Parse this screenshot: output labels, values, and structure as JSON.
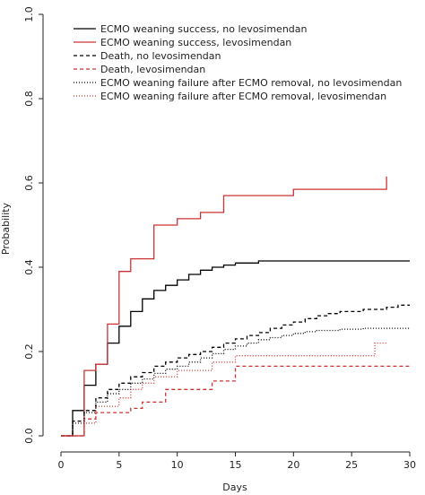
{
  "chart_data": {
    "type": "line",
    "subtype": "step",
    "xlabel": "Days",
    "ylabel": "Probability",
    "xlim": [
      0,
      30
    ],
    "ylim": [
      0,
      1.0
    ],
    "x_ticks": [
      0,
      5,
      10,
      15,
      20,
      25,
      30
    ],
    "y_ticks": [
      "0.0",
      "0.2",
      "0.4",
      "0.6",
      "0.8",
      "1.0"
    ],
    "grid": false,
    "legend_position": "top-left",
    "series": [
      {
        "name": "ECMO weaning success, no levosimendan",
        "color": "#000000",
        "dash": "solid",
        "points": [
          [
            0,
            0
          ],
          [
            1,
            0
          ],
          [
            1,
            0.06
          ],
          [
            2,
            0.06
          ],
          [
            2,
            0.12
          ],
          [
            3,
            0.12
          ],
          [
            3,
            0.17
          ],
          [
            4,
            0.17
          ],
          [
            4,
            0.22
          ],
          [
            5,
            0.22
          ],
          [
            5,
            0.26
          ],
          [
            6,
            0.26
          ],
          [
            6,
            0.295
          ],
          [
            7,
            0.295
          ],
          [
            7,
            0.325
          ],
          [
            8,
            0.325
          ],
          [
            8,
            0.345
          ],
          [
            9,
            0.345
          ],
          [
            9,
            0.357
          ],
          [
            10,
            0.357
          ],
          [
            10,
            0.37
          ],
          [
            11,
            0.37
          ],
          [
            11,
            0.383
          ],
          [
            12,
            0.383
          ],
          [
            12,
            0.393
          ],
          [
            13,
            0.393
          ],
          [
            13,
            0.4
          ],
          [
            14,
            0.4
          ],
          [
            14,
            0.405
          ],
          [
            15,
            0.405
          ],
          [
            15,
            0.41
          ],
          [
            17,
            0.41
          ],
          [
            17,
            0.415
          ],
          [
            30,
            0.415
          ]
        ]
      },
      {
        "name": "ECMO weaning success, levosimendan",
        "color": "#cc3333",
        "dash": "solid",
        "points": [
          [
            0,
            0
          ],
          [
            2,
            0
          ],
          [
            2,
            0.155
          ],
          [
            3,
            0.155
          ],
          [
            3,
            0.17
          ],
          [
            4,
            0.17
          ],
          [
            4,
            0.265
          ],
          [
            5,
            0.265
          ],
          [
            5,
            0.39
          ],
          [
            6,
            0.39
          ],
          [
            6,
            0.42
          ],
          [
            8,
            0.42
          ],
          [
            8,
            0.5
          ],
          [
            10,
            0.5
          ],
          [
            10,
            0.515
          ],
          [
            12,
            0.515
          ],
          [
            12,
            0.53
          ],
          [
            14,
            0.53
          ],
          [
            14,
            0.57
          ],
          [
            20,
            0.57
          ],
          [
            20,
            0.585
          ],
          [
            28,
            0.585
          ],
          [
            28,
            0.615
          ]
        ]
      },
      {
        "name": "Death, no levosimendan",
        "color": "#000000",
        "dash": "4,3",
        "points": [
          [
            0,
            0
          ],
          [
            1,
            0
          ],
          [
            1,
            0.035
          ],
          [
            2,
            0.035
          ],
          [
            2,
            0.06
          ],
          [
            3,
            0.06
          ],
          [
            3,
            0.09
          ],
          [
            4,
            0.09
          ],
          [
            4,
            0.11
          ],
          [
            5,
            0.11
          ],
          [
            5,
            0.125
          ],
          [
            6,
            0.125
          ],
          [
            6,
            0.14
          ],
          [
            7,
            0.14
          ],
          [
            7,
            0.15
          ],
          [
            8,
            0.15
          ],
          [
            8,
            0.165
          ],
          [
            9,
            0.165
          ],
          [
            9,
            0.175
          ],
          [
            10,
            0.175
          ],
          [
            10,
            0.185
          ],
          [
            11,
            0.185
          ],
          [
            11,
            0.193
          ],
          [
            12,
            0.193
          ],
          [
            12,
            0.2
          ],
          [
            13,
            0.2
          ],
          [
            13,
            0.21
          ],
          [
            14,
            0.21
          ],
          [
            14,
            0.22
          ],
          [
            15,
            0.22
          ],
          [
            15,
            0.23
          ],
          [
            16,
            0.23
          ],
          [
            16,
            0.238
          ],
          [
            17,
            0.238
          ],
          [
            17,
            0.245
          ],
          [
            18,
            0.245
          ],
          [
            18,
            0.255
          ],
          [
            19,
            0.255
          ],
          [
            19,
            0.263
          ],
          [
            20,
            0.263
          ],
          [
            20,
            0.27
          ],
          [
            21,
            0.27
          ],
          [
            21,
            0.278
          ],
          [
            22,
            0.278
          ],
          [
            22,
            0.285
          ],
          [
            23,
            0.285
          ],
          [
            23,
            0.29
          ],
          [
            24,
            0.29
          ],
          [
            24,
            0.295
          ],
          [
            26,
            0.295
          ],
          [
            26,
            0.3
          ],
          [
            28,
            0.3
          ],
          [
            28,
            0.305
          ],
          [
            29,
            0.305
          ],
          [
            29,
            0.31
          ],
          [
            30,
            0.31
          ]
        ]
      },
      {
        "name": "Death, levosimendan",
        "color": "#cc3333",
        "dash": "4,3",
        "points": [
          [
            0,
            0
          ],
          [
            2,
            0
          ],
          [
            2,
            0.04
          ],
          [
            3,
            0.04
          ],
          [
            3,
            0.055
          ],
          [
            6,
            0.055
          ],
          [
            6,
            0.065
          ],
          [
            7,
            0.065
          ],
          [
            7,
            0.08
          ],
          [
            9,
            0.08
          ],
          [
            9,
            0.11
          ],
          [
            13,
            0.11
          ],
          [
            13,
            0.13
          ],
          [
            15,
            0.13
          ],
          [
            15,
            0.165
          ],
          [
            30,
            0.165
          ]
        ]
      },
      {
        "name": "ECMO weaning failure after ECMO removal, no levosimendan",
        "color": "#000000",
        "dash": "1,2",
        "points": [
          [
            0,
            0
          ],
          [
            1,
            0
          ],
          [
            1,
            0.03
          ],
          [
            2,
            0.03
          ],
          [
            2,
            0.055
          ],
          [
            3,
            0.055
          ],
          [
            3,
            0.08
          ],
          [
            4,
            0.08
          ],
          [
            4,
            0.1
          ],
          [
            5,
            0.1
          ],
          [
            5,
            0.11
          ],
          [
            6,
            0.11
          ],
          [
            6,
            0.125
          ],
          [
            7,
            0.125
          ],
          [
            7,
            0.135
          ],
          [
            8,
            0.135
          ],
          [
            8,
            0.148
          ],
          [
            9,
            0.148
          ],
          [
            9,
            0.158
          ],
          [
            10,
            0.158
          ],
          [
            10,
            0.165
          ],
          [
            11,
            0.165
          ],
          [
            11,
            0.175
          ],
          [
            12,
            0.175
          ],
          [
            12,
            0.185
          ],
          [
            13,
            0.185
          ],
          [
            13,
            0.195
          ],
          [
            14,
            0.195
          ],
          [
            14,
            0.205
          ],
          [
            15,
            0.205
          ],
          [
            15,
            0.213
          ],
          [
            16,
            0.213
          ],
          [
            16,
            0.22
          ],
          [
            17,
            0.22
          ],
          [
            17,
            0.228
          ],
          [
            18,
            0.228
          ],
          [
            18,
            0.233
          ],
          [
            19,
            0.233
          ],
          [
            19,
            0.238
          ],
          [
            20,
            0.238
          ],
          [
            20,
            0.243
          ],
          [
            21,
            0.243
          ],
          [
            21,
            0.247
          ],
          [
            22,
            0.247
          ],
          [
            22,
            0.25
          ],
          [
            24,
            0.25
          ],
          [
            24,
            0.253
          ],
          [
            26,
            0.253
          ],
          [
            26,
            0.255
          ],
          [
            30,
            0.255
          ]
        ]
      },
      {
        "name": "ECMO weaning failure after ECMO removal, levosimendan",
        "color": "#cc3333",
        "dash": "1,2",
        "points": [
          [
            0,
            0
          ],
          [
            2,
            0
          ],
          [
            2,
            0.03
          ],
          [
            3,
            0.03
          ],
          [
            3,
            0.07
          ],
          [
            5,
            0.07
          ],
          [
            5,
            0.09
          ],
          [
            6,
            0.09
          ],
          [
            6,
            0.11
          ],
          [
            7,
            0.11
          ],
          [
            7,
            0.125
          ],
          [
            8,
            0.125
          ],
          [
            8,
            0.14
          ],
          [
            10,
            0.14
          ],
          [
            10,
            0.155
          ],
          [
            13,
            0.155
          ],
          [
            13,
            0.175
          ],
          [
            15,
            0.175
          ],
          [
            15,
            0.19
          ],
          [
            27,
            0.19
          ],
          [
            27,
            0.22
          ],
          [
            28,
            0.22
          ]
        ]
      }
    ]
  }
}
